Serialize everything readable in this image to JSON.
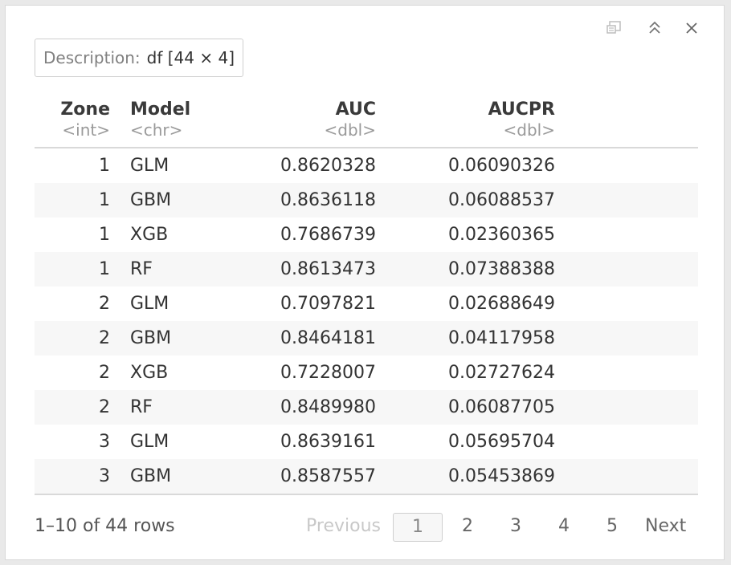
{
  "description": {
    "label": "Description:",
    "value": "df [44 × 4]"
  },
  "columns": [
    {
      "name": "Zone",
      "type": "<int>"
    },
    {
      "name": "Model",
      "type": "<chr>"
    },
    {
      "name": "AUC",
      "type": "<dbl>"
    },
    {
      "name": "AUCPR",
      "type": "<dbl>"
    }
  ],
  "rows": [
    [
      "1",
      "GLM",
      "0.8620328",
      "0.06090326"
    ],
    [
      "1",
      "GBM",
      "0.8636118",
      "0.06088537"
    ],
    [
      "1",
      "XGB",
      "0.7686739",
      "0.02360365"
    ],
    [
      "1",
      "RF",
      "0.8613473",
      "0.07388388"
    ],
    [
      "2",
      "GLM",
      "0.7097821",
      "0.02688649"
    ],
    [
      "2",
      "GBM",
      "0.8464181",
      "0.04117958"
    ],
    [
      "2",
      "XGB",
      "0.7228007",
      "0.02727624"
    ],
    [
      "2",
      "RF",
      "0.8489980",
      "0.06087705"
    ],
    [
      "3",
      "GLM",
      "0.8639161",
      "0.05695704"
    ],
    [
      "3",
      "GBM",
      "0.8587557",
      "0.05453869"
    ]
  ],
  "footer": {
    "rows_info": "1–10 of 44 rows",
    "previous": "Previous",
    "pages": [
      "1",
      "2",
      "3",
      "4",
      "5"
    ],
    "next": "Next"
  },
  "toolbar_icons": [
    "popout-icon",
    "collapse-icon",
    "close-icon"
  ]
}
